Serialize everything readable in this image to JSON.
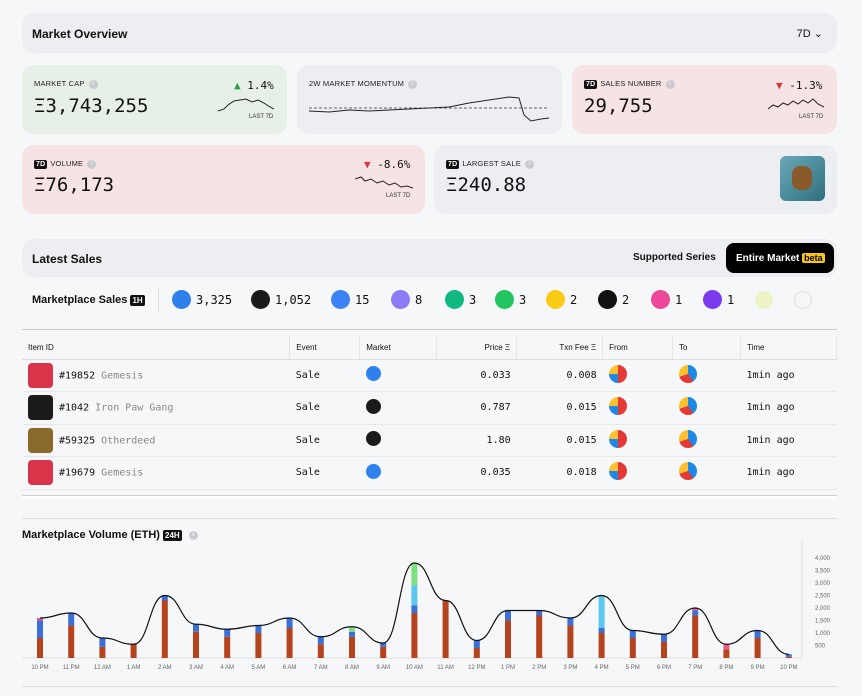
{
  "overview": {
    "title": "Market Overview",
    "range": "7D"
  },
  "stats": {
    "market_cap": {
      "label": "MARKET CAP",
      "value": "Ξ3,743,255",
      "change": "1.4%",
      "footer": "LAST 7D"
    },
    "momentum": {
      "label": "2W MARKET MOMENTUM"
    },
    "sales_number": {
      "badge": "7D",
      "label": "SALES NUMBER",
      "value": "29,755",
      "change": "-1.3%",
      "footer": "LAST 7D"
    },
    "volume": {
      "badge": "7D",
      "label": "VOLUME",
      "value": "Ξ76,173",
      "change": "-8.6%",
      "footer": "LAST 7D"
    },
    "largest_sale": {
      "badge": "7D",
      "label": "LARGEST SALE",
      "value": "Ξ240.88"
    }
  },
  "latest": {
    "title": "Latest Sales",
    "supported": "Supported Series",
    "entire": "Entire Market",
    "beta": "beta"
  },
  "marketplace": {
    "label": "Marketplace Sales",
    "badge": "1H",
    "items": [
      {
        "count": "3,325",
        "icon": "opensea-icon",
        "color": "#2f80ed"
      },
      {
        "count": "1,052",
        "icon": "magiceden-icon",
        "color": "#1b1b1b"
      },
      {
        "count": "15",
        "icon": "ring-icon",
        "color": "#3b82f6"
      },
      {
        "count": "8",
        "icon": "sudoswap-icon",
        "color": "#8b7cf6"
      },
      {
        "count": "3",
        "icon": "eye-icon",
        "color": "#10b981"
      },
      {
        "count": "3",
        "icon": "cube-icon",
        "color": "#22c55e"
      },
      {
        "count": "2",
        "icon": "rarible-icon",
        "color": "#facc15"
      },
      {
        "count": "2",
        "icon": "x2y2-icon",
        "color": "#111"
      },
      {
        "count": "1",
        "icon": "coinbase-icon",
        "color": "#ec4899"
      },
      {
        "count": "1",
        "icon": "blur-icon",
        "color": "#7c3aed"
      }
    ]
  },
  "table": {
    "headers": [
      "Item ID",
      "Event",
      "Market",
      "Price Ξ",
      "Txn Fee Ξ",
      "From",
      "To",
      "Time"
    ],
    "rows": [
      {
        "id": "#19852",
        "name": "Gemesis",
        "event": "Sale",
        "price": "0.033",
        "fee": "0.008",
        "time": "1min ago",
        "thumb": "#d9344a",
        "mkt": "#2f80ed"
      },
      {
        "id": "#1042",
        "name": "Iron Paw Gang",
        "event": "Sale",
        "price": "0.787",
        "fee": "0.015",
        "time": "1min ago",
        "thumb": "#1b1b1b",
        "mkt": "#1b1b1b"
      },
      {
        "id": "#59325",
        "name": "Otherdeed",
        "event": "Sale",
        "price": "1.80",
        "fee": "0.015",
        "time": "1min ago",
        "thumb": "#8a6a2a",
        "mkt": "#1b1b1b"
      },
      {
        "id": "#19679",
        "name": "Gemesis",
        "event": "Sale",
        "price": "0.035",
        "fee": "0.018",
        "time": "1min ago",
        "thumb": "#d9344a",
        "mkt": "#2f80ed"
      }
    ]
  },
  "chart_data": {
    "type": "bar",
    "title": "Marketplace Volume (ETH)",
    "badge": "24H",
    "categories": [
      "10 PM",
      "11 PM",
      "12 AM",
      "1 AM",
      "2 AM",
      "3 AM",
      "4 AM",
      "5 AM",
      "6 AM",
      "7 AM",
      "8 AM",
      "9 AM",
      "10 AM",
      "11 AM",
      "12 PM",
      "1 PM",
      "2 PM",
      "3 PM",
      "4 PM",
      "5 PM",
      "6 PM",
      "7 PM",
      "8 PM",
      "9 PM",
      "10 PM"
    ],
    "yticks": [
      "4,000",
      "3,500",
      "3,000",
      "2,500",
      "2,000",
      "1,500",
      "1,000",
      "500"
    ],
    "ylim": [
      0,
      4200
    ],
    "series": [
      {
        "color": "#b5441e",
        "values": [
          800,
          1300,
          450,
          550,
          2300,
          1050,
          850,
          1000,
          1200,
          550,
          850,
          450,
          1800,
          2300,
          400,
          1500,
          1700,
          1300,
          1000,
          800,
          650,
          1700,
          350,
          800,
          50
        ]
      },
      {
        "color": "#3b6fd8",
        "values": [
          700,
          500,
          350,
          0,
          200,
          300,
          300,
          300,
          400,
          300,
          200,
          150,
          300,
          0,
          300,
          400,
          200,
          300,
          200,
          300,
          300,
          200,
          0,
          300,
          100
        ]
      },
      {
        "color": "#5bc8f0",
        "values": [
          0,
          0,
          0,
          0,
          0,
          0,
          0,
          0,
          0,
          0,
          0,
          0,
          800,
          0,
          0,
          0,
          0,
          0,
          1300,
          0,
          0,
          0,
          0,
          0,
          0
        ]
      },
      {
        "color": "#7ee081",
        "values": [
          0,
          0,
          0,
          0,
          0,
          0,
          0,
          0,
          0,
          0,
          200,
          0,
          900,
          0,
          0,
          0,
          0,
          0,
          0,
          0,
          0,
          0,
          0,
          0,
          0
        ]
      },
      {
        "color": "#e85a8a",
        "values": [
          100,
          0,
          0,
          0,
          0,
          0,
          0,
          0,
          0,
          0,
          0,
          0,
          0,
          0,
          0,
          0,
          0,
          0,
          0,
          0,
          0,
          100,
          200,
          0,
          0
        ]
      }
    ]
  }
}
